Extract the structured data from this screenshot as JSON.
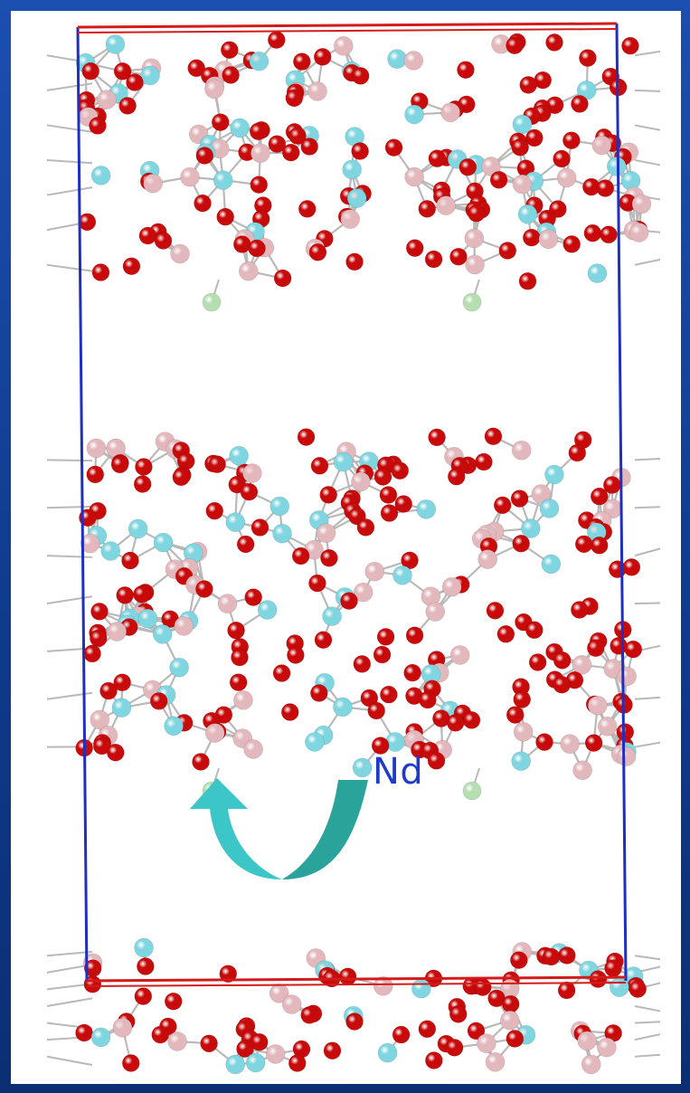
{
  "figure": {
    "label": "Nd",
    "colors": {
      "background": "#1b4fb0",
      "cell_vertical": "#1f2fbf",
      "cell_horizontal": "#d41a1a",
      "oxygen": "#c80a0a",
      "pink_atom": "#e3b8bd",
      "cyan_atom": "#7fd6e0",
      "green_atom": "#b5dfb0",
      "bond": "#b9b9b9",
      "arrow_left": "#3cc6c8",
      "arrow_right": "#2aa39b"
    },
    "icons": [
      "unit-cell-frame",
      "atom-layer",
      "migration-arrow"
    ]
  }
}
